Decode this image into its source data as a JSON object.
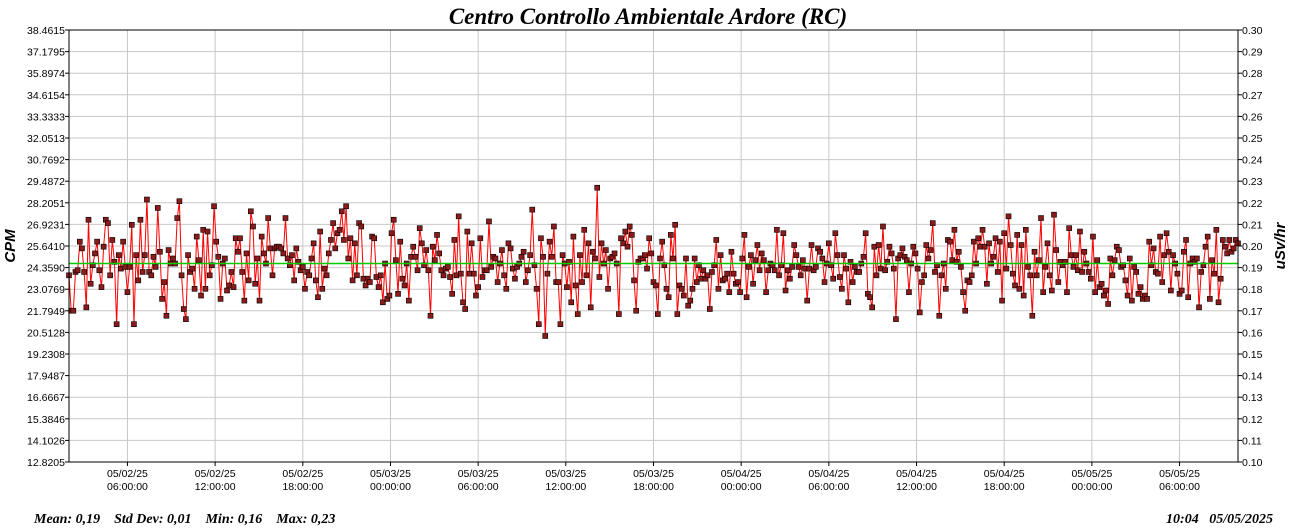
{
  "footer": {
    "stats": "Mean: 0,19    Std Dev: 0,01    Min: 0,16    Max: 0,23",
    "timestamp": "10:04   05/05/2025"
  },
  "chart_data": {
    "type": "line",
    "title": "Centro Controllo Ambientale Ardore (RC)",
    "ylabel": "CPM",
    "y2label": "uSv/hr",
    "ylim": [
      12.8205,
      38.4615
    ],
    "y2lim": [
      0.1,
      0.3
    ],
    "y_ticks": [
      "38.4615",
      "37.1795",
      "35.8974",
      "34.6154",
      "33.3333",
      "32.0513",
      "30.7692",
      "29.4872",
      "28.2051",
      "26.9231",
      "25.6410",
      "24.3590",
      "23.0769",
      "21.7949",
      "20.5128",
      "19.2308",
      "17.9487",
      "16.6667",
      "15.3846",
      "14.1026",
      "12.8205"
    ],
    "y2_ticks": [
      "0.30",
      "0.29",
      "0.28",
      "0.27",
      "0.26",
      "0.25",
      "0.24",
      "0.23",
      "0.22",
      "0.21",
      "0.20",
      "0.19",
      "0.18",
      "0.17",
      "0.16",
      "0.15",
      "0.14",
      "0.13",
      "0.12",
      "0.11",
      "0.10"
    ],
    "x_ticks": [
      {
        "date": "05/02/25",
        "time": "06:00:00"
      },
      {
        "date": "05/02/25",
        "time": "12:00:00"
      },
      {
        "date": "05/02/25",
        "time": "18:00:00"
      },
      {
        "date": "05/03/25",
        "time": "00:00:00"
      },
      {
        "date": "05/03/25",
        "time": "06:00:00"
      },
      {
        "date": "05/03/25",
        "time": "12:00:00"
      },
      {
        "date": "05/03/25",
        "time": "18:00:00"
      },
      {
        "date": "05/04/25",
        "time": "00:00:00"
      },
      {
        "date": "05/04/25",
        "time": "06:00:00"
      },
      {
        "date": "05/04/25",
        "time": "12:00:00"
      },
      {
        "date": "05/04/25",
        "time": "18:00:00"
      },
      {
        "date": "05/05/25",
        "time": "00:00:00"
      },
      {
        "date": "05/05/25",
        "time": "06:00:00"
      }
    ],
    "xlim": [
      "05/02/25 02:00",
      "05/05/25 10:00"
    ],
    "mean_cpm": 24.6,
    "grid": true,
    "series": [
      {
        "color": "#ff0000",
        "marker_color": "#8b1a1a",
        "values": [
          23.9,
          21.8,
          21.8,
          24.1,
          24.2,
          25.9,
          25.5,
          24.1,
          22.0,
          27.2,
          23.4,
          24.5,
          25.2,
          25.9,
          24.2,
          23.2,
          25.6,
          27.2,
          27.0,
          23.9,
          26.0,
          24.7,
          21.0,
          25.1,
          24.3,
          25.9,
          24.4,
          22.9,
          24.4,
          26.9,
          21.0,
          25.1,
          23.6,
          27.2,
          24.1,
          25.1,
          28.4,
          24.1,
          23.9,
          25.0,
          24.4,
          27.9,
          25.3,
          22.5,
          23.5,
          21.5,
          25.4,
          24.6,
          24.9,
          24.6,
          27.3,
          28.3,
          23.9,
          21.9,
          21.3,
          25.1,
          24.1,
          24.3,
          23.1,
          26.2,
          24.8,
          22.7,
          26.6,
          23.1,
          26.5,
          23.9,
          24.5,
          28.0,
          25.9,
          25.0,
          22.5,
          24.6,
          24.9,
          23.0,
          23.3,
          24.1,
          23.2,
          26.1,
          25.3,
          26.1,
          24.1,
          22.4,
          25.2,
          23.6,
          27.7,
          26.8,
          23.4,
          24.9,
          22.4,
          26.2,
          25.2,
          24.6,
          27.3,
          25.5,
          23.9,
          25.5,
          25.6,
          25.6,
          25.5,
          25.2,
          27.3,
          24.9,
          24.5,
          25.1,
          23.6,
          25.5,
          24.7,
          24.2,
          24.4,
          23.1,
          24.1,
          23.9,
          24.9,
          25.8,
          23.6,
          22.6,
          26.5,
          23.1,
          24.3,
          23.9,
          25.2,
          26.0,
          27.0,
          25.5,
          26.4,
          26.6,
          27.7,
          26.0,
          28.0,
          24.9,
          26.1,
          23.6,
          25.8,
          23.9,
          27.0,
          26.8,
          23.7,
          23.3,
          23.7,
          23.5,
          26.2,
          26.1,
          23.8,
          23.2,
          23.9,
          22.3,
          24.6,
          22.5,
          22.7,
          26.4,
          27.2,
          24.8,
          22.8,
          25.9,
          23.7,
          23.3,
          24.6,
          22.4,
          25.0,
          25.6,
          25.0,
          24.2,
          26.7,
          25.8,
          24.5,
          25.4,
          24.2,
          21.5,
          25.6,
          24.8,
          26.3,
          25.2,
          24.2,
          23.9,
          24.3,
          24.4,
          23.8,
          22.8,
          26.0,
          23.9,
          27.4,
          24.0,
          22.3,
          21.9,
          26.5,
          24.0,
          25.8,
          24.0,
          22.7,
          23.2,
          26.1,
          23.8,
          24.2,
          24.2,
          27.1,
          24.4,
          25.0,
          24.9,
          23.5,
          24.6,
          25.4,
          23.9,
          23.1,
          25.8,
          25.5,
          24.3,
          23.7,
          24.4,
          24.6,
          25.0,
          25.3,
          23.5,
          24.2,
          25.1,
          27.8,
          24.5,
          23.1,
          21.0,
          26.1,
          25.0,
          20.3,
          24.0,
          25.9,
          25.0,
          26.8,
          23.5,
          23.5,
          21.0,
          25.1,
          24.6,
          23.2,
          24.7,
          22.3,
          26.2,
          23.3,
          21.6,
          25.1,
          23.5,
          26.6,
          23.9,
          25.8,
          22.0,
          25.3,
          24.9,
          29.1,
          23.8,
          25.8,
          24.6,
          25.4,
          23.1,
          24.9,
          25.0,
          25.2,
          24.6,
          21.6,
          26.1,
          25.8,
          26.5,
          25.6,
          26.8,
          26.3,
          23.6,
          21.8,
          24.7,
          24.9,
          24.9,
          25.1,
          24.3,
          26.1,
          25.2,
          23.5,
          23.3,
          21.6,
          24.9,
          25.9,
          24.5,
          23.1,
          22.6,
          26.3,
          24.9,
          26.9,
          21.6,
          23.3,
          23.1,
          22.7,
          24.9,
          22.1,
          22.4,
          23.1,
          24.9,
          23.5,
          24.5,
          23.7,
          24.2,
          23.7,
          23.9,
          21.9,
          24.1,
          24.5,
          26.0,
          23.1,
          25.1,
          23.6,
          23.7,
          24.0,
          22.9,
          25.3,
          24.0,
          23.4,
          23.5,
          22.9,
          24.9,
          26.3,
          22.6,
          24.4,
          25.1,
          23.4,
          24.8,
          25.7,
          24.2,
          25.2,
          24.8,
          22.9,
          24.2,
          24.6,
          24.5,
          24.2,
          26.6,
          23.9,
          24.5,
          26.4,
          23.0,
          24.2,
          23.7,
          24.4,
          25.7,
          25.1,
          24.4,
          23.9,
          24.8,
          24.3,
          22.4,
          24.3,
          25.7,
          24.2,
          24.4,
          25.5,
          25.3,
          24.9,
          23.5,
          24.6,
          25.8,
          24.5,
          23.7,
          26.4,
          25.1,
          23.8,
          23.1,
          25.1,
          24.3,
          22.3,
          24.7,
          23.5,
          24.4,
          24.1,
          24.1,
          24.6,
          25.0,
          26.4,
          22.8,
          22.6,
          22.0,
          25.6,
          23.9,
          25.7,
          24.3,
          26.8,
          24.2,
          24.7,
          25.6,
          25.2,
          24.3,
          21.3,
          24.9,
          25.1,
          25.5,
          25.0,
          24.8,
          22.9,
          24.6,
          25.6,
          25.2,
          24.3,
          21.7,
          23.5,
          23.9,
          25.7,
          24.9,
          25.4,
          27.0,
          24.1,
          24.5,
          21.5,
          23.9,
          24.6,
          23.1,
          26.0,
          25.9,
          24.8,
          26.6,
          24.7,
          25.3,
          24.4,
          22.9,
          21.8,
          23.6,
          23.5,
          23.9,
          25.9,
          24.6,
          26.1,
          25.6,
          26.6,
          25.6,
          23.4,
          25.8,
          24.6,
          25.0,
          26.1,
          24.1,
          25.9,
          22.4,
          26.4,
          24.3,
          27.4,
          25.7,
          24.0,
          23.3,
          26.3,
          23.1,
          25.7,
          22.7,
          26.6,
          24.4,
          23.9,
          21.5,
          25.3,
          23.9,
          24.8,
          27.3,
          22.9,
          24.4,
          25.8,
          23.9,
          23.0,
          27.5,
          25.4,
          23.5,
          24.7,
          24.5,
          24.7,
          22.9,
          26.7,
          25.1,
          24.4,
          25.1,
          24.2,
          26.5,
          24.1,
          25.3,
          24.6,
          24.1,
          23.7,
          26.2,
          22.9,
          24.8,
          23.2,
          23.4,
          22.7,
          23.0,
          22.2,
          24.9,
          23.9,
          24.8,
          25.6,
          25.4,
          24.4,
          24.5,
          23.6,
          22.7,
          24.9,
          22.4,
          24.4,
          24.1,
          22.8,
          23.2,
          22.5,
          22.7,
          22.5,
          25.9,
          24.5,
          25.5,
          24.1,
          24.0,
          26.2,
          23.5,
          25.1,
          26.4,
          25.3,
          23.0,
          25.1,
          24.6,
          24.0,
          22.8,
          23.0,
          25.3,
          26.0,
          22.6,
          24.6,
          24.9,
          24.7,
          24.9,
          22.0,
          24.1,
          24.5,
          25.6,
          26.2,
          22.5,
          24.8,
          24.0,
          26.6,
          22.3,
          23.7,
          26.0,
          25.6,
          25.2,
          26.0,
          25.3,
          25.5,
          26.0,
          25.8
        ]
      }
    ]
  }
}
